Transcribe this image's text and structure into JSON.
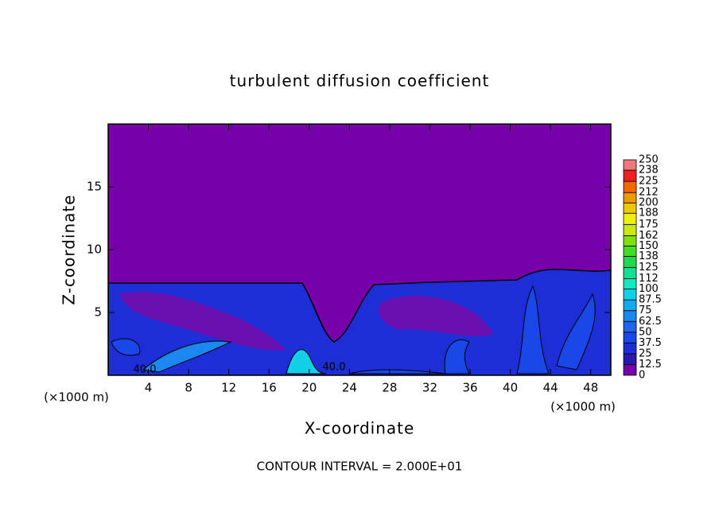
{
  "chart_data": {
    "type": "contour",
    "title": "turbulent diffusion coefficient",
    "x_label": "X-coordinate",
    "y_label": "Z-coordinate",
    "x_unit_left": "(×1000 m)",
    "x_unit_right": "(×1000 m)",
    "footer": "CONTOUR INTERVAL = 2.000E+01",
    "xlim": [
      0,
      50
    ],
    "ylim": [
      0,
      20
    ],
    "xticks": [
      4,
      8,
      12,
      16,
      20,
      24,
      28,
      32,
      36,
      40,
      44,
      48
    ],
    "yticks": [
      5,
      10,
      15
    ],
    "contour_labels": [
      "40.0",
      "40.0"
    ],
    "colorbar": {
      "levels": [
        0,
        12.5,
        25,
        37.5,
        50,
        62.5,
        75,
        87.5,
        100,
        112,
        125,
        138,
        150,
        162,
        175,
        188,
        200,
        212,
        225,
        238,
        250
      ],
      "colors": [
        "#7800a8",
        "#2a18b0",
        "#1e2ed6",
        "#1a48e8",
        "#1e66f0",
        "#1a88f0",
        "#10aaf0",
        "#10d0e8",
        "#10e8c0",
        "#10e090",
        "#20d850",
        "#40e020",
        "#80e010",
        "#c8e810",
        "#f0f010",
        "#f0c800",
        "#f09800",
        "#f06800",
        "#f02020",
        "#f07878"
      ]
    }
  }
}
